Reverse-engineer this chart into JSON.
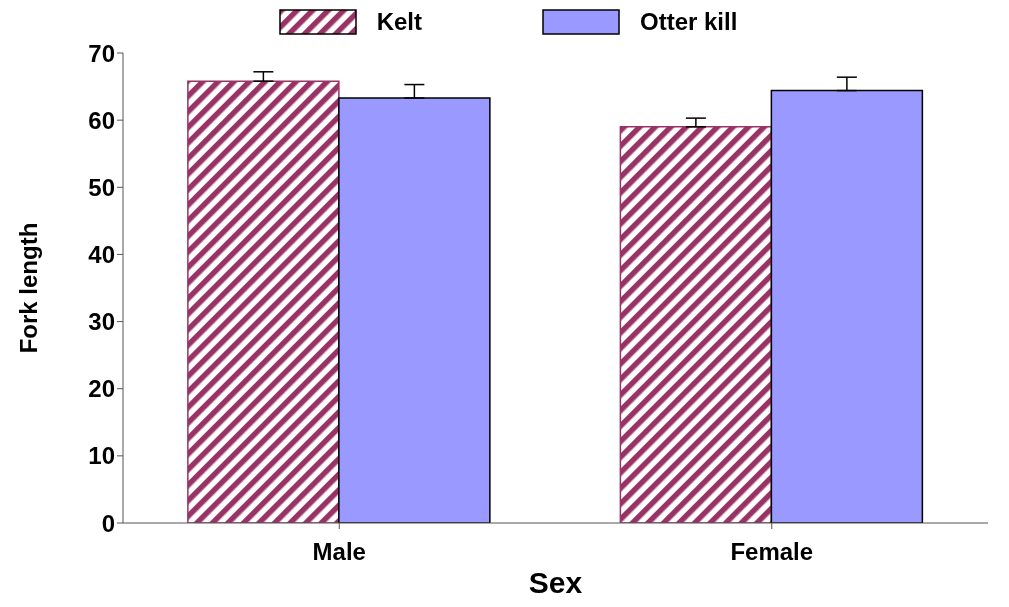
{
  "chart_data": {
    "type": "bar",
    "xlabel": "Sex",
    "ylabel": "Fork length",
    "categories": [
      "Male",
      "Female"
    ],
    "series": [
      {
        "name": "Kelt",
        "color": "#993366",
        "values": [
          65.8,
          59.0
        ],
        "errors": [
          [
            65.8,
            67.2
          ],
          [
            59.0,
            60.3
          ]
        ]
      },
      {
        "name": "Otter kill",
        "color": "#9999ff",
        "values": [
          63.3,
          64.4
        ],
        "errors": [
          [
            63.3,
            65.3
          ],
          [
            64.4,
            66.4
          ]
        ]
      }
    ],
    "ylim": [
      0,
      70
    ],
    "yticks": [
      0,
      10,
      20,
      30,
      40,
      50,
      60,
      70
    ],
    "legend": "top"
  }
}
